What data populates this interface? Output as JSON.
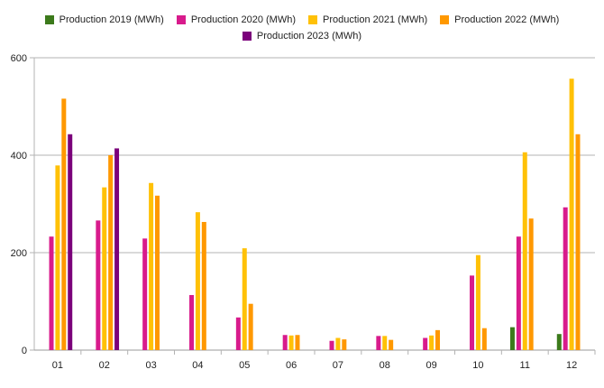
{
  "chart_data": {
    "type": "bar",
    "title": "",
    "xlabel": "",
    "ylabel": "",
    "categories": [
      "01",
      "02",
      "03",
      "04",
      "05",
      "06",
      "07",
      "08",
      "09",
      "10",
      "11",
      "12"
    ],
    "ylim": [
      0,
      600
    ],
    "yticks": [
      0,
      200,
      400,
      600
    ],
    "grid": true,
    "legend_position": "top-center",
    "series": [
      {
        "name": "Production 2019 (MWh)",
        "color": "#3c7a1b",
        "values": [
          0,
          0,
          0,
          0,
          0,
          0,
          0,
          0,
          0,
          0,
          47,
          33
        ]
      },
      {
        "name": "Production 2020 (MWh)",
        "color": "#d81b8c",
        "values": [
          233,
          266,
          229,
          113,
          67,
          31,
          19,
          29,
          25,
          153,
          233,
          293
        ]
      },
      {
        "name": "Production 2021 (MWh)",
        "color": "#ffc107",
        "values": [
          379,
          334,
          343,
          283,
          209,
          30,
          25,
          29,
          30,
          195,
          406,
          557
        ]
      },
      {
        "name": "Production 2022 (MWh)",
        "color": "#ff9800",
        "values": [
          516,
          400,
          317,
          263,
          95,
          31,
          22,
          21,
          41,
          45,
          270,
          443
        ]
      },
      {
        "name": "Production 2023 (MWh)",
        "color": "#7b007b",
        "values": [
          443,
          414,
          0,
          0,
          0,
          0,
          0,
          0,
          0,
          0,
          0,
          0
        ]
      }
    ]
  }
}
